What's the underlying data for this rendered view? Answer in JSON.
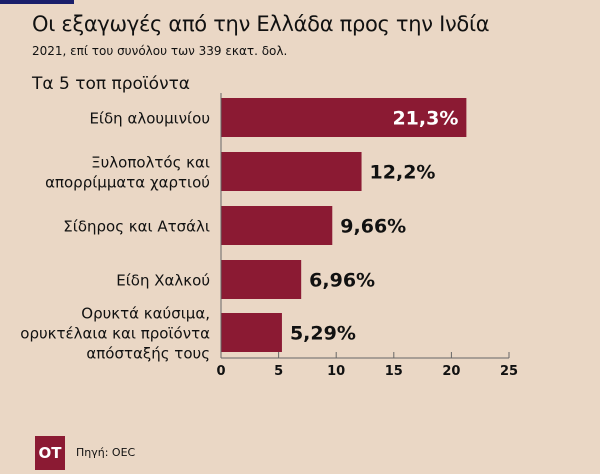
{
  "header": {
    "title": "Οι εξαγωγές από την Ελλάδα προς την Ινδία",
    "subtitle": "2021, επί του συνόλου των 339 εκατ. δολ.",
    "section": "Τα 5 τοπ προϊόντα"
  },
  "footer": {
    "logo": "OT",
    "source": "Πηγή: OEC"
  },
  "colors": {
    "bar": "#8b1a33",
    "background": "#ead7c5"
  },
  "chart_data": {
    "type": "bar",
    "orientation": "horizontal",
    "categories": [
      [
        "Είδη αλουμινίου"
      ],
      [
        "Ξυλοπολτός και",
        "απορρίμματα χαρτιού"
      ],
      [
        "Σίδηρος και Ατσάλι"
      ],
      [
        "Είδη Χαλκού"
      ],
      [
        "Ορυκτά καύσιμα,",
        "ορυκτέλαια και προϊόντα",
        "απόσταξής τους"
      ]
    ],
    "values": [
      21.3,
      12.2,
      9.66,
      6.96,
      5.29
    ],
    "labels": [
      "21,3%",
      "12,2%",
      "9,66%",
      "6,96%",
      "5,29%"
    ],
    "xlim": [
      0,
      25
    ],
    "xticks": [
      0,
      5,
      10,
      15,
      20,
      25
    ],
    "xtick_labels": [
      "0",
      "5",
      "10",
      "15",
      "20",
      "25"
    ],
    "grid": false
  }
}
